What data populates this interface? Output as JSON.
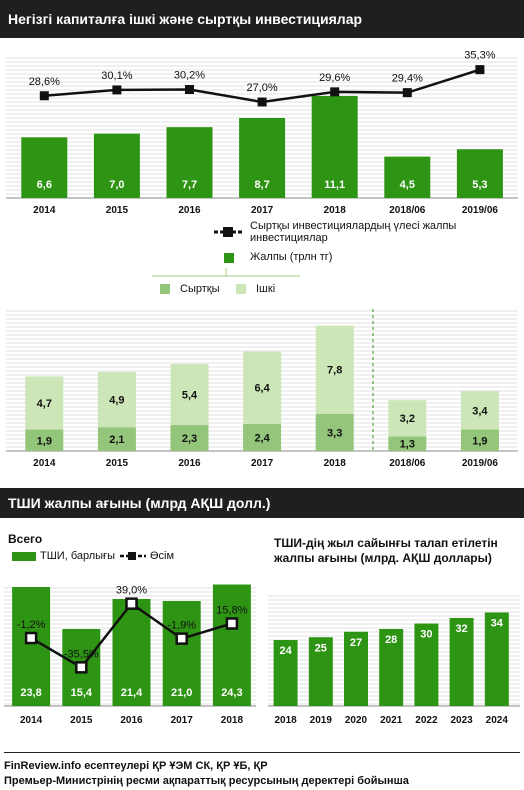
{
  "header1": "Негізгі капиталға ішкі және сыртқы инвестициялар",
  "header2": "ТШИ жалпы ағыны (млрд АҚШ долл.)",
  "legend1": {
    "share_label": "Сыртқы инвестициялардың үлесі жалпы инвестициялар",
    "total_label": "Жалпы (трлн тг)",
    "external_label": "Сыртқы",
    "internal_label": "Ішкі"
  },
  "colors": {
    "green": "#2e9413",
    "light_green": "#cde6b8",
    "mid_green": "#93c67a",
    "band": "#1f1f1f"
  },
  "chart_data": [
    {
      "type": "bar",
      "categories": [
        "2014",
        "2015",
        "2016",
        "2017",
        "2018",
        "2018/06",
        "2019/06"
      ],
      "series": [
        {
          "name": "Жалпы (трлн тг)",
          "values": [
            6.6,
            7.0,
            7.7,
            8.7,
            11.1,
            4.5,
            5.3
          ],
          "labels": [
            "6,6",
            "7,0",
            "7,7",
            "8,7",
            "11,1",
            "4,5",
            "5,3"
          ]
        },
        {
          "name": "Сыртқы инвестициялардың үлесі жалпы инвестициялар",
          "type": "line",
          "values": [
            28.6,
            30.1,
            30.2,
            27.0,
            29.6,
            29.4,
            35.3
          ],
          "labels": [
            "28,6%",
            "30,1%",
            "30,2%",
            "27,0%",
            "29,6%",
            "29,4%",
            "35,3%"
          ]
        }
      ]
    },
    {
      "type": "bar",
      "stacked": true,
      "categories": [
        "2014",
        "2015",
        "2016",
        "2017",
        "2018",
        "2018/06",
        "2019/06"
      ],
      "series": [
        {
          "name": "Сыртқы",
          "values": [
            1.9,
            2.1,
            2.3,
            2.4,
            3.3,
            1.3,
            1.9
          ],
          "labels": [
            "1,9",
            "2,1",
            "2,3",
            "2,4",
            "3,3",
            "1,3",
            "1,9"
          ]
        },
        {
          "name": "Ішкі",
          "values": [
            4.7,
            4.9,
            5.4,
            6.4,
            7.8,
            3.2,
            3.4
          ],
          "labels": [
            "4,7",
            "4,9",
            "5,4",
            "6,4",
            "7,8",
            "3,2",
            "3,4"
          ]
        }
      ]
    },
    {
      "type": "bar",
      "title": "Всего",
      "categories": [
        "2014",
        "2015",
        "2016",
        "2017",
        "2018"
      ],
      "series": [
        {
          "name": "ТШИ, барлығы",
          "values": [
            23.8,
            15.4,
            21.4,
            21.0,
            24.3
          ],
          "labels": [
            "23,8",
            "15,4",
            "21,4",
            "21,0",
            "24,3"
          ]
        },
        {
          "name": "Өсім",
          "type": "line",
          "values": [
            -1.2,
            -35.5,
            39.0,
            -1.9,
            15.8
          ],
          "labels": [
            "-1,2%",
            "-35,5%",
            "39,0%",
            "-1,9%",
            "15,8%"
          ]
        }
      ]
    },
    {
      "type": "bar",
      "title": "ТШИ-дің жыл сайынғы талап етілетін жалпы ағыны (млрд. АҚШ доллары)",
      "categories": [
        "2018",
        "2019",
        "2020",
        "2021",
        "2022",
        "2023",
        "2024"
      ],
      "values": [
        24,
        25,
        27,
        28,
        30,
        32,
        34
      ],
      "labels": [
        "24",
        "25",
        "27",
        "28",
        "30",
        "32",
        "34"
      ]
    }
  ],
  "footer": {
    "line1": "FinReview.info есептеулері ҚР ҰЭМ СК, ҚР ҰБ, ҚР",
    "line2": "Премьер-Министрінің ресми ақпараттық ресурсының деректері бойынша"
  }
}
